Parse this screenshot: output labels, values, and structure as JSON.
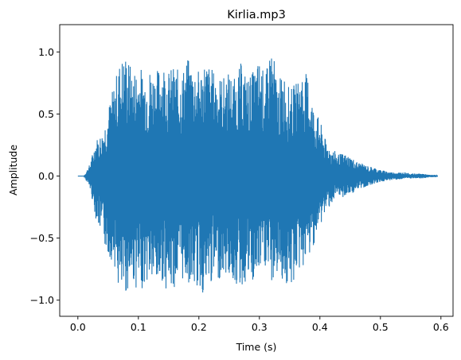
{
  "chart_data": {
    "type": "line",
    "title": "Kirlia.mp3",
    "xlabel": "Time (s)",
    "ylabel": "Amplitude",
    "xlim": [
      -0.03,
      0.62
    ],
    "ylim": [
      -1.13,
      1.22
    ],
    "x_ticks": [
      0.0,
      0.1,
      0.2,
      0.3,
      0.4,
      0.5,
      0.6
    ],
    "x_tick_labels": [
      "0.0",
      "0.1",
      "0.2",
      "0.3",
      "0.4",
      "0.5",
      "0.6"
    ],
    "y_ticks": [
      -1.0,
      -0.5,
      0.0,
      0.5,
      1.0
    ],
    "y_tick_labels": [
      "−1.0",
      "−0.5",
      "0.0",
      "0.5",
      "1.0"
    ],
    "grid": false,
    "legend": "none",
    "color": "#1f77b4",
    "series": [
      {
        "x": [
          0.0,
          0.01,
          0.02,
          0.03,
          0.04,
          0.05,
          0.06,
          0.07,
          0.08,
          0.09,
          0.1,
          0.11,
          0.12,
          0.13,
          0.14,
          0.15,
          0.16,
          0.17,
          0.18,
          0.19,
          0.2,
          0.21,
          0.22,
          0.23,
          0.24,
          0.25,
          0.26,
          0.27,
          0.28,
          0.29,
          0.3,
          0.31,
          0.32,
          0.33,
          0.34,
          0.35,
          0.36,
          0.37,
          0.38,
          0.39,
          0.4,
          0.41,
          0.42,
          0.43,
          0.44,
          0.45,
          0.46,
          0.47,
          0.48,
          0.49,
          0.5,
          0.51,
          0.52,
          0.53,
          0.54,
          0.55,
          0.56,
          0.57,
          0.58,
          0.59,
          0.595
        ],
        "upper": [
          0.0,
          0.0,
          0.1,
          0.3,
          0.35,
          0.55,
          0.75,
          0.95,
          1.0,
          0.85,
          0.9,
          0.85,
          0.88,
          0.85,
          0.95,
          0.85,
          0.9,
          0.82,
          0.95,
          0.92,
          0.85,
          0.95,
          0.88,
          0.82,
          0.8,
          0.85,
          0.78,
          0.92,
          0.8,
          0.85,
          0.95,
          0.8,
          1.1,
          0.75,
          0.85,
          0.7,
          0.75,
          0.85,
          0.82,
          0.55,
          0.45,
          0.28,
          0.22,
          0.18,
          0.18,
          0.16,
          0.12,
          0.1,
          0.08,
          0.07,
          0.05,
          0.04,
          0.03,
          0.03,
          0.03,
          0.02,
          0.02,
          0.02,
          0.01,
          0.01,
          0.0
        ],
        "lower": [
          0.0,
          0.0,
          -0.1,
          -0.35,
          -0.5,
          -0.65,
          -0.7,
          -1.02,
          -0.95,
          -0.85,
          -0.95,
          -0.88,
          -0.85,
          -0.92,
          -0.85,
          -0.95,
          -0.9,
          -0.85,
          -0.85,
          -0.9,
          -0.92,
          -0.98,
          -0.88,
          -0.85,
          -0.8,
          -0.82,
          -0.88,
          -0.92,
          -0.85,
          -0.9,
          -0.8,
          -0.75,
          -0.88,
          -0.8,
          -0.85,
          -0.98,
          -0.8,
          -0.75,
          -0.7,
          -0.55,
          -0.42,
          -0.28,
          -0.22,
          -0.18,
          -0.17,
          -0.15,
          -0.12,
          -0.1,
          -0.08,
          -0.06,
          -0.05,
          -0.04,
          -0.03,
          -0.03,
          -0.02,
          -0.02,
          -0.02,
          -0.02,
          -0.01,
          -0.01,
          0.0
        ]
      }
    ]
  }
}
